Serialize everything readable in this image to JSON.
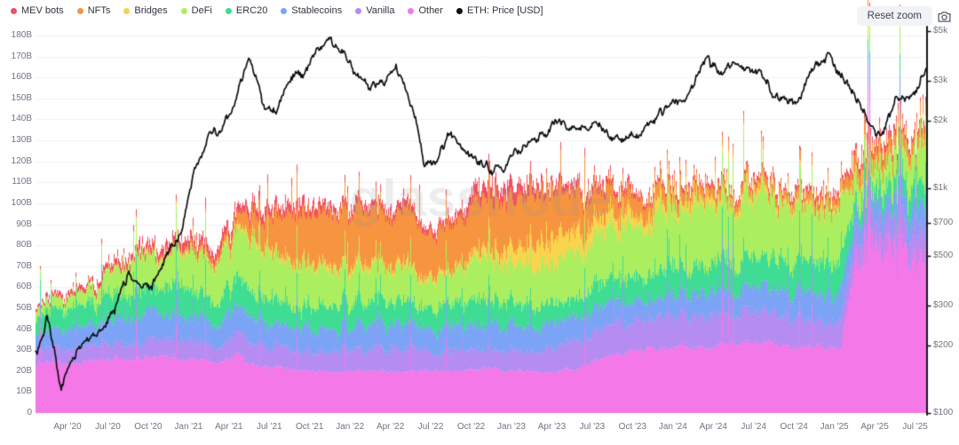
{
  "watermark": "glassnode",
  "controls": {
    "reset_zoom_label": "Reset zoom",
    "camera_icon": "camera-icon"
  },
  "chart_data": {
    "type": "area",
    "stacked": true,
    "legend_position": "top-left",
    "grid": "horizontal-only",
    "x_unit": "month",
    "x": [
      "2020-01",
      "2020-02",
      "2020-03",
      "2020-04",
      "2020-05",
      "2020-06",
      "2020-07",
      "2020-08",
      "2020-09",
      "2020-10",
      "2020-11",
      "2020-12",
      "2021-01",
      "2021-02",
      "2021-03",
      "2021-04",
      "2021-05",
      "2021-06",
      "2021-07",
      "2021-08",
      "2021-09",
      "2021-10",
      "2021-11",
      "2021-12",
      "2022-01",
      "2022-02",
      "2022-03",
      "2022-04",
      "2022-05",
      "2022-06",
      "2022-07",
      "2022-08",
      "2022-09",
      "2022-10",
      "2022-11",
      "2022-12",
      "2023-01",
      "2023-02",
      "2023-03",
      "2023-04",
      "2023-05",
      "2023-06",
      "2023-07",
      "2023-08",
      "2023-09",
      "2023-10",
      "2023-11",
      "2023-12",
      "2024-01",
      "2024-02",
      "2024-03",
      "2024-04",
      "2024-05",
      "2024-06",
      "2024-07",
      "2024-08",
      "2024-09",
      "2024-10",
      "2024-11",
      "2024-12",
      "2025-01",
      "2025-02",
      "2025-03",
      "2025-04",
      "2025-05",
      "2025-06",
      "2025-07",
      "2025-08"
    ],
    "stack_order_bottom_to_top": [
      "Other",
      "Vanilla",
      "Stablecoins",
      "ERC20",
      "DeFi",
      "Bridges",
      "NFTs",
      "MEV bots"
    ],
    "series": [
      {
        "name": "MEV bots",
        "color": "#f14f65",
        "unit": "B",
        "values": [
          1,
          1.5,
          2,
          2,
          2,
          2.5,
          3,
          3,
          3,
          3,
          3.5,
          4,
          4,
          4,
          4,
          4,
          4,
          4,
          4,
          4,
          4,
          3.5,
          3.5,
          3,
          3,
          3,
          3,
          3,
          3,
          3,
          3,
          3,
          4,
          6,
          6,
          6,
          5,
          4,
          3,
          3,
          3,
          3,
          3,
          2.5,
          2.5,
          2,
          2,
          2,
          2,
          2,
          2,
          2,
          2,
          2,
          2,
          2,
          2,
          2,
          2,
          2,
          2,
          3,
          3,
          3,
          3,
          2.5,
          2.5,
          2.5
        ]
      },
      {
        "name": "NFTs",
        "color": "#f79440",
        "unit": "B",
        "values": [
          0.2,
          0.2,
          0.3,
          0.3,
          0.3,
          0.4,
          0.5,
          0.5,
          0.7,
          1,
          1,
          1.5,
          2,
          2.5,
          3,
          5,
          10,
          14,
          18,
          22,
          24,
          25,
          26,
          26,
          26,
          25,
          25,
          25,
          25,
          22,
          20,
          22,
          23,
          25,
          25,
          24,
          24,
          24,
          24,
          22,
          20,
          17,
          14,
          12,
          10,
          9,
          8,
          7,
          6,
          6,
          5,
          5,
          4.5,
          4,
          4,
          4,
          4,
          4.5,
          5,
          5,
          5,
          8,
          8,
          8,
          7,
          6,
          6,
          5
        ]
      },
      {
        "name": "Bridges",
        "color": "#f9d44c",
        "unit": "B",
        "values": [
          0.2,
          0.2,
          0.2,
          0.2,
          0.3,
          0.3,
          0.5,
          0.5,
          0.7,
          1,
          1,
          1,
          1,
          1,
          1,
          2,
          2,
          2,
          2,
          2,
          2,
          2,
          2,
          2,
          2,
          2,
          2,
          2,
          2,
          2,
          2,
          2,
          2.5,
          4,
          4,
          6,
          8,
          10,
          13,
          12,
          11,
          9,
          8,
          7,
          6,
          5,
          5,
          4,
          4,
          4,
          3.5,
          3,
          3,
          3,
          3,
          2.5,
          2,
          2,
          1.5,
          1.5,
          1,
          1,
          1,
          1,
          1,
          1,
          1,
          1
        ]
      },
      {
        "name": "DeFi",
        "color": "#abee5f",
        "unit": "B",
        "values": [
          4,
          5,
          5,
          6,
          7,
          8,
          13,
          15,
          15,
          14,
          14,
          17,
          19,
          19,
          19,
          20,
          24,
          22,
          22,
          20,
          19,
          18,
          17,
          16,
          16,
          16,
          15.5,
          15,
          15,
          14,
          14,
          14,
          15,
          19,
          19,
          20,
          19,
          19,
          18,
          19,
          20,
          21,
          22,
          23,
          24,
          25,
          26,
          27,
          27,
          27,
          28,
          28,
          28,
          28,
          28,
          27,
          27,
          26,
          26,
          25,
          25,
          12,
          11,
          11,
          12,
          13,
          16,
          30
        ]
      },
      {
        "name": "ERC20",
        "color": "#3edd93",
        "unit": "B",
        "values": [
          8,
          8,
          9,
          9,
          10,
          10,
          12,
          12,
          12,
          12,
          12,
          13,
          12,
          12,
          12,
          13,
          12,
          12,
          11,
          11,
          11,
          11,
          11,
          11,
          11,
          11,
          10.5,
          10.5,
          10,
          10,
          10,
          10,
          10.5,
          12,
          12,
          11,
          11,
          10.5,
          10,
          10,
          10,
          10.5,
          11,
          11.5,
          12,
          12.5,
          13,
          13,
          13,
          13,
          13.5,
          14,
          14,
          14,
          14,
          14.5,
          15,
          15,
          15,
          15,
          15,
          8,
          7,
          7,
          8,
          9,
          10,
          11
        ]
      },
      {
        "name": "Stablecoins",
        "color": "#7ca4f6",
        "unit": "B",
        "values": [
          8,
          9,
          9,
          10,
          10,
          11,
          13,
          13,
          13,
          13,
          13,
          13,
          12,
          12,
          12,
          13,
          12,
          12,
          11,
          11,
          11,
          11,
          11,
          11.5,
          12,
          12,
          12,
          12,
          12,
          11.5,
          11,
          11,
          11,
          12,
          12,
          12,
          12,
          11.5,
          11,
          11,
          11,
          11,
          11,
          10.5,
          10.5,
          10,
          10,
          10,
          10,
          10.5,
          10.5,
          11,
          11,
          11,
          11,
          12,
          12,
          13,
          13.5,
          14,
          14,
          10,
          9,
          9,
          10,
          11,
          12,
          14
        ]
      },
      {
        "name": "Vanilla",
        "color": "#b58cf2",
        "unit": "B",
        "values": [
          6,
          6,
          7,
          7,
          7,
          7,
          8,
          8,
          8,
          8,
          8,
          8,
          8,
          8,
          8,
          10,
          10,
          10,
          10,
          9,
          9,
          10,
          10,
          10,
          10,
          10,
          10,
          10,
          10,
          9.5,
          9,
          9.5,
          10,
          10,
          10,
          10,
          10,
          10.5,
          11,
          11.5,
          12,
          12.5,
          13,
          13.5,
          14,
          14.5,
          15,
          15,
          15,
          15,
          14.5,
          14,
          14,
          14,
          14,
          14,
          14,
          14,
          14,
          14,
          14,
          12,
          11,
          11,
          12,
          13,
          14,
          17
        ]
      },
      {
        "name": "Other",
        "color": "#f478e8",
        "unit": "B",
        "values": [
          23,
          24,
          24,
          23,
          24,
          25,
          26,
          26,
          26,
          27,
          27,
          25,
          25,
          25,
          24,
          28,
          23,
          22,
          22,
          21,
          21,
          20,
          20,
          20,
          20,
          20,
          20,
          20,
          20,
          20,
          20,
          20,
          20,
          21,
          21,
          20,
          20,
          19.5,
          19,
          20,
          21,
          23,
          25,
          27,
          29,
          30,
          30,
          31,
          32,
          32,
          32,
          32,
          32.5,
          33,
          33,
          33,
          32,
          32,
          31.5,
          31.5,
          32,
          76,
          80,
          80,
          77,
          75,
          70,
          72
        ]
      }
    ],
    "line_series": {
      "name": "ETH: Price [USD]",
      "color": "#101014",
      "axis": "right",
      "unit": "USD",
      "values": [
        170,
        260,
        125,
        180,
        210,
        235,
        280,
        420,
        360,
        380,
        520,
        650,
        1250,
        1700,
        1850,
        2450,
        3900,
        2350,
        2200,
        3100,
        3300,
        4050,
        4650,
        3950,
        3100,
        2800,
        3000,
        3400,
        2400,
        1250,
        1350,
        1800,
        1450,
        1350,
        1200,
        1220,
        1500,
        1650,
        1750,
        2050,
        1850,
        1800,
        1900,
        1700,
        1630,
        1750,
        2000,
        2300,
        2400,
        2900,
        3800,
        3200,
        3600,
        3500,
        3300,
        2600,
        2400,
        2550,
        3400,
        3900,
        3250,
        2650,
        1950,
        1650,
        2450,
        2500,
        3100,
        3800
      ]
    },
    "left_axis": {
      "min": 0,
      "max": 180,
      "tick_step": 10,
      "tick_labels": [
        "180B",
        "170B",
        "160B",
        "150B",
        "140B",
        "130B",
        "120B",
        "110B",
        "100B",
        "90B",
        "80B",
        "70B",
        "60B",
        "50B",
        "40B",
        "30B",
        "20B",
        "10B",
        "0"
      ]
    },
    "right_axis": {
      "scale": "log",
      "min": 100,
      "max": 5000,
      "ticks": [
        {
          "label": "$5k",
          "value": 5000
        },
        {
          "label": "$3k",
          "value": 3000
        },
        {
          "label": "$2k",
          "value": 2000
        },
        {
          "label": "$1k",
          "value": 1000
        },
        {
          "label": "$700",
          "value": 700
        },
        {
          "label": "$500",
          "value": 500
        },
        {
          "label": "$300",
          "value": 300
        },
        {
          "label": "$200",
          "value": 200
        },
        {
          "label": "$100",
          "value": 100
        }
      ]
    },
    "x_axis": {
      "tick_labels": [
        "Apr '20",
        "Jul '20",
        "Oct '20",
        "Jan '21",
        "Apr '21",
        "Jul '21",
        "Oct '21",
        "Jan '22",
        "Apr '22",
        "Jul '22",
        "Oct '22",
        "Jan '23",
        "Apr '23",
        "Jul '23",
        "Oct '23",
        "Jan '24",
        "Apr '24",
        "Jul '24",
        "Oct '24",
        "Jan '25",
        "Apr '25",
        "Jul '25"
      ]
    }
  }
}
